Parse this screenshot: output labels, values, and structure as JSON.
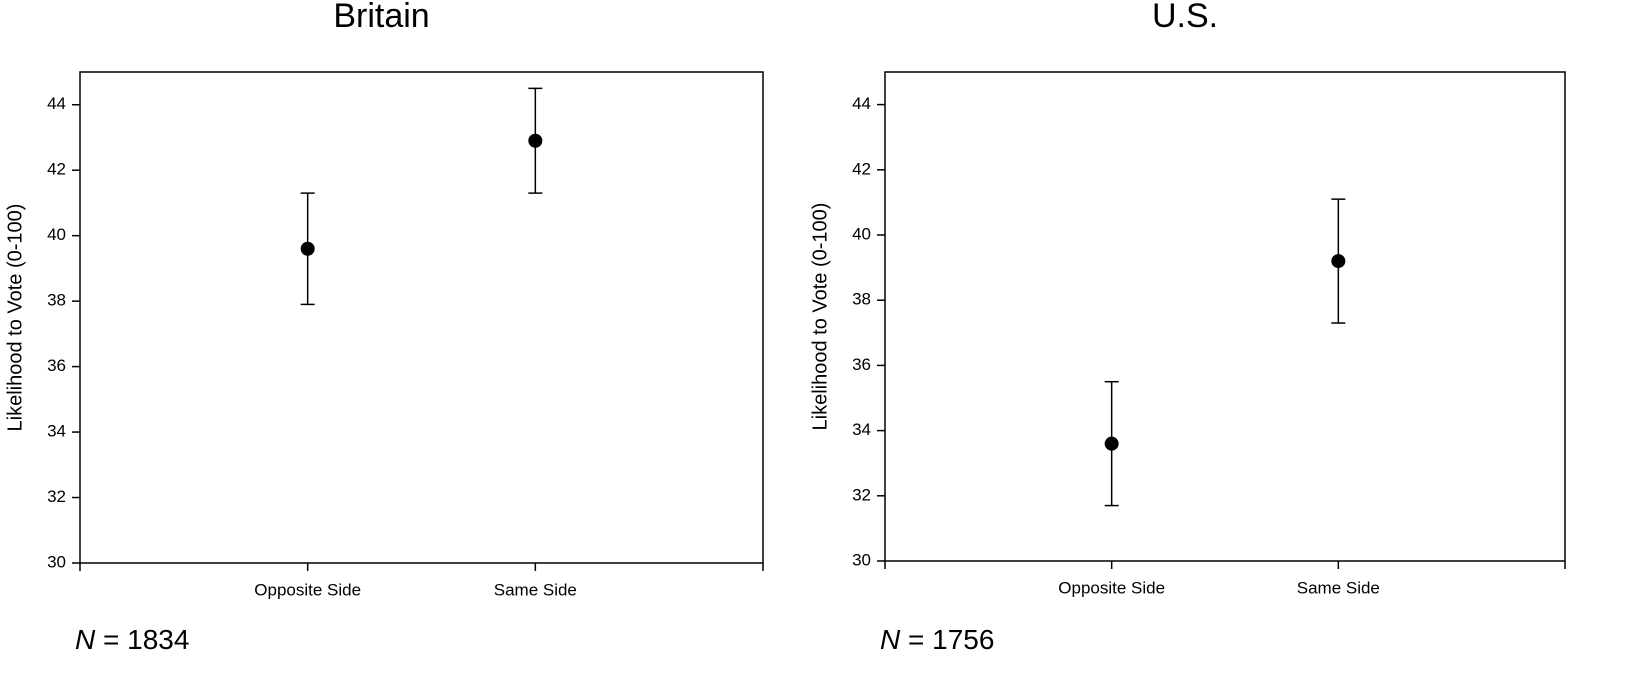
{
  "chart_data": [
    {
      "type": "errorbar",
      "title": "Britain",
      "y_label": "Likelihood to Vote (0-100)",
      "note": "N = 1834",
      "categories": [
        "Opposite Side",
        "Same Side"
      ],
      "values": [
        39.6,
        42.9
      ],
      "errors": [
        1.7,
        1.6
      ],
      "color": "#000000",
      "ylim": [
        30,
        45
      ],
      "yticks": [
        30,
        32,
        34,
        36,
        38,
        40,
        42,
        44
      ]
    },
    {
      "type": "errorbar",
      "title": "U.S.",
      "y_label": "Likelihood to Vote (0-100)",
      "note": "N = 1756",
      "categories": [
        "Opposite Side",
        "Same Side"
      ],
      "values": [
        33.6,
        39.2
      ],
      "errors": [
        1.9,
        1.9
      ],
      "color": "#000000",
      "ylim": [
        30,
        45
      ],
      "yticks": [
        30,
        32,
        34,
        36,
        38,
        40,
        42,
        44
      ]
    }
  ]
}
